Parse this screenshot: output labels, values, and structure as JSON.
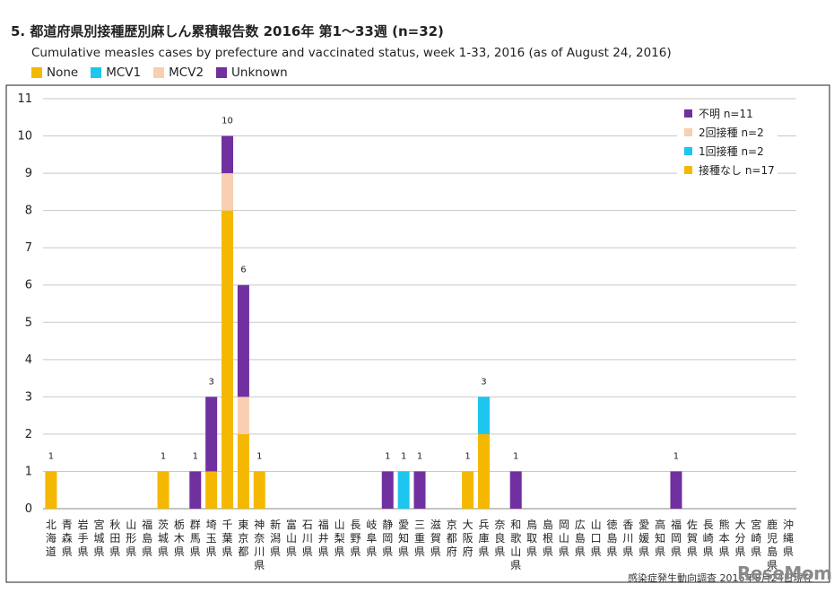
{
  "title": "5. 都道府県別接種歴別麻しん累積報告数 2016年 第1～33週 (n=32)",
  "subtitle": "Cumulative measles cases by prefecture and vaccinated status, week 1-33, 2016 (as of August 24, 2016)",
  "top_legend": [
    {
      "label": "None",
      "color": "#F5B800"
    },
    {
      "label": "MCV1",
      "color": "#1CC6EE"
    },
    {
      "label": "MCV2",
      "color": "#F8CFB0"
    },
    {
      "label": "Unknown",
      "color": "#7030A0"
    }
  ],
  "credit": "感染症発生動向調査 2016年8月24日現在",
  "watermark": "ReseMom",
  "chart_data": {
    "type": "bar",
    "stacked": true,
    "ylim": [
      0,
      11
    ],
    "yticks": [
      0,
      1,
      2,
      3,
      4,
      5,
      6,
      7,
      8,
      9,
      10,
      11
    ],
    "grid": true,
    "legend_position": "top-right",
    "categories": [
      "北海道",
      "青森県",
      "岩手県",
      "宮城県",
      "秋田県",
      "山形県",
      "福島県",
      "茨城県",
      "栃木県",
      "群馬県",
      "埼玉県",
      "千葉県",
      "東京都",
      "神奈川県",
      "新潟県",
      "富山県",
      "石川県",
      "福井県",
      "山梨県",
      "長野県",
      "岐阜県",
      "静岡県",
      "愛知県",
      "三重県",
      "滋賀県",
      "京都府",
      "大阪府",
      "兵庫県",
      "奈良県",
      "和歌山県",
      "鳥取県",
      "島根県",
      "岡山県",
      "広島県",
      "山口県",
      "徳島県",
      "香川県",
      "愛媛県",
      "高知県",
      "福岡県",
      "佐賀県",
      "長崎県",
      "熊本県",
      "大分県",
      "宮崎県",
      "鹿児島県",
      "沖縄県"
    ],
    "series": [
      {
        "name": "接種なし n=17",
        "color": "#F5B800",
        "values": [
          1,
          0,
          0,
          0,
          0,
          0,
          0,
          1,
          0,
          0,
          1,
          8,
          2,
          1,
          0,
          0,
          0,
          0,
          0,
          0,
          0,
          0,
          0,
          0,
          0,
          0,
          1,
          2,
          0,
          0,
          0,
          0,
          0,
          0,
          0,
          0,
          0,
          0,
          0,
          0,
          0,
          0,
          0,
          0,
          0,
          0,
          0
        ]
      },
      {
        "name": "1回接種 n=2",
        "color": "#1CC6EE",
        "values": [
          0,
          0,
          0,
          0,
          0,
          0,
          0,
          0,
          0,
          0,
          0,
          0,
          0,
          0,
          0,
          0,
          0,
          0,
          0,
          0,
          0,
          0,
          1,
          0,
          0,
          0,
          0,
          1,
          0,
          0,
          0,
          0,
          0,
          0,
          0,
          0,
          0,
          0,
          0,
          0,
          0,
          0,
          0,
          0,
          0,
          0,
          0
        ]
      },
      {
        "name": "2回接種 n=2",
        "color": "#F8CFB0",
        "values": [
          0,
          0,
          0,
          0,
          0,
          0,
          0,
          0,
          0,
          0,
          0,
          1,
          1,
          0,
          0,
          0,
          0,
          0,
          0,
          0,
          0,
          0,
          0,
          0,
          0,
          0,
          0,
          0,
          0,
          0,
          0,
          0,
          0,
          0,
          0,
          0,
          0,
          0,
          0,
          0,
          0,
          0,
          0,
          0,
          0,
          0,
          0
        ]
      },
      {
        "name": "不明 n=11",
        "color": "#7030A0",
        "values": [
          0,
          0,
          0,
          0,
          0,
          0,
          0,
          0,
          0,
          1,
          2,
          1,
          3,
          0,
          0,
          0,
          0,
          0,
          0,
          0,
          0,
          1,
          0,
          1,
          0,
          0,
          0,
          0,
          0,
          1,
          0,
          0,
          0,
          0,
          0,
          0,
          0,
          0,
          0,
          1,
          0,
          0,
          0,
          0,
          0,
          0,
          0
        ]
      }
    ],
    "totals": [
      1,
      0,
      0,
      0,
      0,
      0,
      0,
      1,
      0,
      1,
      3,
      10,
      6,
      1,
      0,
      0,
      0,
      0,
      0,
      0,
      0,
      1,
      1,
      1,
      0,
      0,
      1,
      3,
      0,
      1,
      0,
      0,
      0,
      0,
      0,
      0,
      0,
      0,
      0,
      1,
      0,
      0,
      0,
      0,
      0,
      0,
      0
    ],
    "legend_order": [
      3,
      2,
      1,
      0
    ]
  }
}
